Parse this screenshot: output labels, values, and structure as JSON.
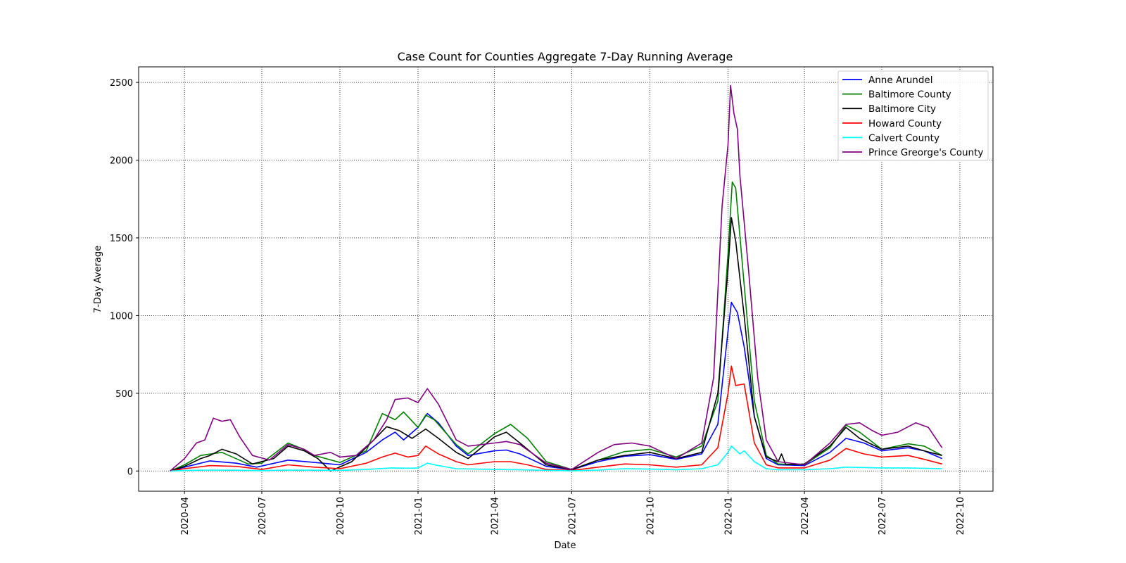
{
  "chart_data": {
    "type": "line",
    "title": "Case Count for Counties Aggregate 7-Day Running Average",
    "xlabel": "Date",
    "ylabel": "7-Day Average",
    "x_type": "date",
    "xlim": [
      "2020-02-07",
      "2022-11-09"
    ],
    "ylim": [
      -130,
      2600
    ],
    "x_ticks": [
      "2020-04-01",
      "2020-07-01",
      "2020-10-01",
      "2021-01-01",
      "2021-04-01",
      "2021-07-01",
      "2021-10-01",
      "2022-01-01",
      "2022-04-01",
      "2022-07-01",
      "2022-10-01"
    ],
    "x_tick_labels": [
      "2020-04",
      "2020-07",
      "2020-10",
      "2021-01",
      "2021-04",
      "2021-07",
      "2021-10",
      "2022-01",
      "2022-04",
      "2022-07",
      "2022-10"
    ],
    "y_ticks": [
      0,
      500,
      1000,
      1500,
      2000,
      2500
    ],
    "y_tick_labels": [
      "0",
      "500",
      "1000",
      "1500",
      "2000",
      "2500"
    ],
    "grid": true,
    "grid_style": "dotted",
    "legend_position": "top-right",
    "series": [
      {
        "name": "Anne Arundel",
        "color": "#0000ff",
        "points": [
          [
            "2020-03-15",
            0
          ],
          [
            "2020-04-01",
            25
          ],
          [
            "2020-05-01",
            65
          ],
          [
            "2020-06-01",
            50
          ],
          [
            "2020-06-25",
            25
          ],
          [
            "2020-08-01",
            70
          ],
          [
            "2020-09-01",
            55
          ],
          [
            "2020-10-01",
            40
          ],
          [
            "2020-11-01",
            120
          ],
          [
            "2020-11-20",
            200
          ],
          [
            "2020-12-05",
            250
          ],
          [
            "2020-12-15",
            200
          ],
          [
            "2021-01-01",
            280
          ],
          [
            "2021-01-12",
            370
          ],
          [
            "2021-01-25",
            310
          ],
          [
            "2021-02-15",
            160
          ],
          [
            "2021-03-01",
            100
          ],
          [
            "2021-04-01",
            130
          ],
          [
            "2021-04-15",
            135
          ],
          [
            "2021-05-01",
            110
          ],
          [
            "2021-06-01",
            30
          ],
          [
            "2021-07-01",
            8
          ],
          [
            "2021-08-01",
            60
          ],
          [
            "2021-09-01",
            95
          ],
          [
            "2021-10-01",
            105
          ],
          [
            "2021-11-01",
            75
          ],
          [
            "2021-12-01",
            110
          ],
          [
            "2021-12-20",
            300
          ],
          [
            "2022-01-01",
            900
          ],
          [
            "2022-01-05",
            1085
          ],
          [
            "2022-01-12",
            1020
          ],
          [
            "2022-01-20",
            800
          ],
          [
            "2022-02-01",
            350
          ],
          [
            "2022-02-15",
            80
          ],
          [
            "2022-03-01",
            40
          ],
          [
            "2022-04-01",
            35
          ],
          [
            "2022-05-01",
            120
          ],
          [
            "2022-05-20",
            210
          ],
          [
            "2022-06-10",
            180
          ],
          [
            "2022-07-01",
            130
          ],
          [
            "2022-08-01",
            150
          ],
          [
            "2022-08-20",
            130
          ],
          [
            "2022-09-10",
            80
          ]
        ]
      },
      {
        "name": "Baltimore County",
        "color": "#008000",
        "points": [
          [
            "2020-03-15",
            0
          ],
          [
            "2020-04-01",
            40
          ],
          [
            "2020-04-20",
            100
          ],
          [
            "2020-05-15",
            120
          ],
          [
            "2020-06-15",
            45
          ],
          [
            "2020-07-01",
            50
          ],
          [
            "2020-08-01",
            180
          ],
          [
            "2020-08-15",
            150
          ],
          [
            "2020-09-01",
            100
          ],
          [
            "2020-10-01",
            55
          ],
          [
            "2020-11-01",
            130
          ],
          [
            "2020-11-20",
            370
          ],
          [
            "2020-12-05",
            330
          ],
          [
            "2020-12-15",
            380
          ],
          [
            "2021-01-01",
            280
          ],
          [
            "2021-01-10",
            360
          ],
          [
            "2021-01-20",
            330
          ],
          [
            "2021-02-15",
            170
          ],
          [
            "2021-03-01",
            110
          ],
          [
            "2021-04-01",
            240
          ],
          [
            "2021-04-20",
            300
          ],
          [
            "2021-05-10",
            210
          ],
          [
            "2021-06-01",
            60
          ],
          [
            "2021-07-01",
            10
          ],
          [
            "2021-08-01",
            70
          ],
          [
            "2021-09-01",
            125
          ],
          [
            "2021-10-01",
            140
          ],
          [
            "2021-11-01",
            90
          ],
          [
            "2021-12-01",
            160
          ],
          [
            "2021-12-20",
            450
          ],
          [
            "2022-01-01",
            1400
          ],
          [
            "2022-01-06",
            1860
          ],
          [
            "2022-01-10",
            1820
          ],
          [
            "2022-01-20",
            1200
          ],
          [
            "2022-02-01",
            450
          ],
          [
            "2022-02-15",
            100
          ],
          [
            "2022-03-01",
            45
          ],
          [
            "2022-04-01",
            40
          ],
          [
            "2022-05-01",
            150
          ],
          [
            "2022-05-20",
            295
          ],
          [
            "2022-06-05",
            250
          ],
          [
            "2022-07-01",
            140
          ],
          [
            "2022-08-01",
            175
          ],
          [
            "2022-08-20",
            160
          ],
          [
            "2022-09-10",
            100
          ]
        ]
      },
      {
        "name": "Baltimore City",
        "color": "#000000",
        "points": [
          [
            "2020-03-15",
            0
          ],
          [
            "2020-04-01",
            30
          ],
          [
            "2020-04-20",
            80
          ],
          [
            "2020-05-01",
            100
          ],
          [
            "2020-05-15",
            140
          ],
          [
            "2020-06-01",
            110
          ],
          [
            "2020-06-20",
            45
          ],
          [
            "2020-07-15",
            80
          ],
          [
            "2020-08-01",
            160
          ],
          [
            "2020-08-20",
            130
          ],
          [
            "2020-09-05",
            80
          ],
          [
            "2020-09-20",
            0
          ],
          [
            "2020-10-15",
            60
          ],
          [
            "2020-11-10",
            200
          ],
          [
            "2020-11-25",
            285
          ],
          [
            "2020-12-10",
            260
          ],
          [
            "2020-12-25",
            210
          ],
          [
            "2021-01-10",
            270
          ],
          [
            "2021-01-25",
            210
          ],
          [
            "2021-02-15",
            120
          ],
          [
            "2021-03-01",
            80
          ],
          [
            "2021-04-01",
            220
          ],
          [
            "2021-04-15",
            250
          ],
          [
            "2021-05-01",
            180
          ],
          [
            "2021-06-01",
            40
          ],
          [
            "2021-07-01",
            8
          ],
          [
            "2021-08-01",
            70
          ],
          [
            "2021-09-01",
            100
          ],
          [
            "2021-10-01",
            120
          ],
          [
            "2021-11-01",
            80
          ],
          [
            "2021-12-01",
            120
          ],
          [
            "2021-12-20",
            500
          ],
          [
            "2022-01-01",
            1300
          ],
          [
            "2022-01-05",
            1630
          ],
          [
            "2022-01-10",
            1480
          ],
          [
            "2022-01-20",
            1000
          ],
          [
            "2022-02-01",
            350
          ],
          [
            "2022-02-15",
            90
          ],
          [
            "2022-03-01",
            60
          ],
          [
            "2022-03-05",
            110
          ],
          [
            "2022-03-10",
            40
          ],
          [
            "2022-04-01",
            45
          ],
          [
            "2022-05-01",
            160
          ],
          [
            "2022-05-20",
            280
          ],
          [
            "2022-06-05",
            210
          ],
          [
            "2022-07-01",
            140
          ],
          [
            "2022-08-01",
            160
          ],
          [
            "2022-08-20",
            130
          ],
          [
            "2022-09-10",
            100
          ]
        ]
      },
      {
        "name": "Howard County",
        "color": "#ff0000",
        "points": [
          [
            "2020-03-15",
            0
          ],
          [
            "2020-04-01",
            15
          ],
          [
            "2020-05-01",
            35
          ],
          [
            "2020-06-01",
            30
          ],
          [
            "2020-07-01",
            10
          ],
          [
            "2020-08-01",
            40
          ],
          [
            "2020-09-01",
            25
          ],
          [
            "2020-10-01",
            15
          ],
          [
            "2020-11-01",
            50
          ],
          [
            "2020-11-20",
            90
          ],
          [
            "2020-12-05",
            115
          ],
          [
            "2020-12-20",
            90
          ],
          [
            "2021-01-01",
            100
          ],
          [
            "2021-01-10",
            160
          ],
          [
            "2021-01-25",
            110
          ],
          [
            "2021-02-15",
            60
          ],
          [
            "2021-03-01",
            40
          ],
          [
            "2021-04-01",
            60
          ],
          [
            "2021-04-20",
            60
          ],
          [
            "2021-05-10",
            40
          ],
          [
            "2021-06-01",
            10
          ],
          [
            "2021-07-01",
            3
          ],
          [
            "2021-08-01",
            25
          ],
          [
            "2021-09-01",
            45
          ],
          [
            "2021-10-01",
            40
          ],
          [
            "2021-11-01",
            25
          ],
          [
            "2021-12-01",
            40
          ],
          [
            "2021-12-20",
            150
          ],
          [
            "2022-01-01",
            500
          ],
          [
            "2022-01-05",
            675
          ],
          [
            "2022-01-10",
            550
          ],
          [
            "2022-01-20",
            560
          ],
          [
            "2022-02-01",
            180
          ],
          [
            "2022-02-15",
            40
          ],
          [
            "2022-03-01",
            20
          ],
          [
            "2022-04-01",
            20
          ],
          [
            "2022-05-01",
            70
          ],
          [
            "2022-05-20",
            145
          ],
          [
            "2022-06-10",
            110
          ],
          [
            "2022-07-01",
            90
          ],
          [
            "2022-08-01",
            100
          ],
          [
            "2022-08-20",
            75
          ],
          [
            "2022-09-10",
            45
          ]
        ]
      },
      {
        "name": "Calvert County",
        "color": "#00ffff",
        "points": [
          [
            "2020-03-15",
            0
          ],
          [
            "2020-04-01",
            3
          ],
          [
            "2020-05-01",
            6
          ],
          [
            "2020-06-01",
            5
          ],
          [
            "2020-07-01",
            2
          ],
          [
            "2020-08-01",
            6
          ],
          [
            "2020-09-01",
            5
          ],
          [
            "2020-10-01",
            4
          ],
          [
            "2020-11-01",
            10
          ],
          [
            "2020-12-01",
            20
          ],
          [
            "2020-12-20",
            18
          ],
          [
            "2021-01-01",
            20
          ],
          [
            "2021-01-12",
            50
          ],
          [
            "2021-01-25",
            35
          ],
          [
            "2021-02-15",
            15
          ],
          [
            "2021-04-01",
            10
          ],
          [
            "2021-05-01",
            8
          ],
          [
            "2021-07-01",
            1
          ],
          [
            "2021-08-01",
            6
          ],
          [
            "2021-09-01",
            15
          ],
          [
            "2021-10-01",
            12
          ],
          [
            "2021-11-01",
            8
          ],
          [
            "2021-12-01",
            15
          ],
          [
            "2021-12-20",
            40
          ],
          [
            "2022-01-01",
            120
          ],
          [
            "2022-01-05",
            160
          ],
          [
            "2022-01-15",
            110
          ],
          [
            "2022-01-20",
            130
          ],
          [
            "2022-02-01",
            60
          ],
          [
            "2022-02-15",
            15
          ],
          [
            "2022-03-01",
            8
          ],
          [
            "2022-04-01",
            8
          ],
          [
            "2022-05-01",
            15
          ],
          [
            "2022-05-20",
            25
          ],
          [
            "2022-07-01",
            20
          ],
          [
            "2022-08-01",
            20
          ],
          [
            "2022-09-10",
            15
          ]
        ]
      },
      {
        "name": "Prince Greorge's County",
        "color": "#800080",
        "points": [
          [
            "2020-03-15",
            0
          ],
          [
            "2020-04-01",
            80
          ],
          [
            "2020-04-15",
            180
          ],
          [
            "2020-04-25",
            200
          ],
          [
            "2020-05-05",
            340
          ],
          [
            "2020-05-15",
            320
          ],
          [
            "2020-05-25",
            330
          ],
          [
            "2020-06-05",
            220
          ],
          [
            "2020-06-20",
            100
          ],
          [
            "2020-07-10",
            70
          ],
          [
            "2020-08-01",
            170
          ],
          [
            "2020-08-20",
            140
          ],
          [
            "2020-09-01",
            100
          ],
          [
            "2020-09-20",
            120
          ],
          [
            "2020-10-01",
            90
          ],
          [
            "2020-10-20",
            100
          ],
          [
            "2020-11-10",
            200
          ],
          [
            "2020-11-25",
            330
          ],
          [
            "2020-12-05",
            460
          ],
          [
            "2020-12-20",
            470
          ],
          [
            "2021-01-01",
            440
          ],
          [
            "2021-01-12",
            530
          ],
          [
            "2021-01-25",
            430
          ],
          [
            "2021-02-15",
            200
          ],
          [
            "2021-03-01",
            160
          ],
          [
            "2021-04-01",
            180
          ],
          [
            "2021-04-15",
            190
          ],
          [
            "2021-05-01",
            170
          ],
          [
            "2021-06-01",
            50
          ],
          [
            "2021-07-01",
            10
          ],
          [
            "2021-08-01",
            120
          ],
          [
            "2021-08-20",
            170
          ],
          [
            "2021-09-10",
            180
          ],
          [
            "2021-10-01",
            160
          ],
          [
            "2021-11-01",
            80
          ],
          [
            "2021-12-01",
            180
          ],
          [
            "2021-12-15",
            600
          ],
          [
            "2021-12-25",
            1700
          ],
          [
            "2022-01-01",
            2100
          ],
          [
            "2022-01-04",
            2480
          ],
          [
            "2022-01-08",
            2300
          ],
          [
            "2022-01-12",
            2200
          ],
          [
            "2022-01-15",
            1900
          ],
          [
            "2022-01-25",
            1300
          ],
          [
            "2022-02-05",
            600
          ],
          [
            "2022-02-15",
            200
          ],
          [
            "2022-03-01",
            60
          ],
          [
            "2022-04-01",
            40
          ],
          [
            "2022-05-01",
            180
          ],
          [
            "2022-05-20",
            300
          ],
          [
            "2022-06-05",
            310
          ],
          [
            "2022-06-20",
            260
          ],
          [
            "2022-07-01",
            230
          ],
          [
            "2022-07-20",
            250
          ],
          [
            "2022-08-10",
            310
          ],
          [
            "2022-08-25",
            280
          ],
          [
            "2022-09-10",
            150
          ]
        ]
      }
    ]
  }
}
